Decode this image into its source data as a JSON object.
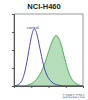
{
  "chart_data": {
    "type": "line",
    "title": "NCI-H460",
    "caption": "126512761",
    "x": [
      0,
      5,
      10,
      15,
      20,
      25,
      30,
      35,
      40,
      45,
      50,
      55,
      60,
      65,
      70,
      75,
      80,
      85,
      90,
      95,
      100
    ],
    "series": [
      {
        "name": "control",
        "color": "#3a3aa8",
        "line_style": "solid",
        "values": [
          0,
          1,
          4,
          15,
          40,
          70,
          85,
          65,
          40,
          20,
          10,
          5,
          2,
          1,
          0,
          0,
          0,
          0,
          0,
          0,
          0
        ]
      },
      {
        "color": "#2e9e3a",
        "type": "area",
        "values": [
          0,
          0,
          0,
          0,
          1,
          3,
          6,
          12,
          20,
          32,
          48,
          62,
          72,
          68,
          52,
          32,
          16,
          7,
          3,
          1,
          0
        ]
      }
    ],
    "xlim": [
      0,
      100
    ],
    "ylim": [
      0,
      100
    ],
    "xticks": [
      0,
      25,
      50,
      75,
      100
    ],
    "yticks": [
      0,
      25,
      50,
      75,
      100
    ],
    "tick_labels": false,
    "grid": false
  }
}
